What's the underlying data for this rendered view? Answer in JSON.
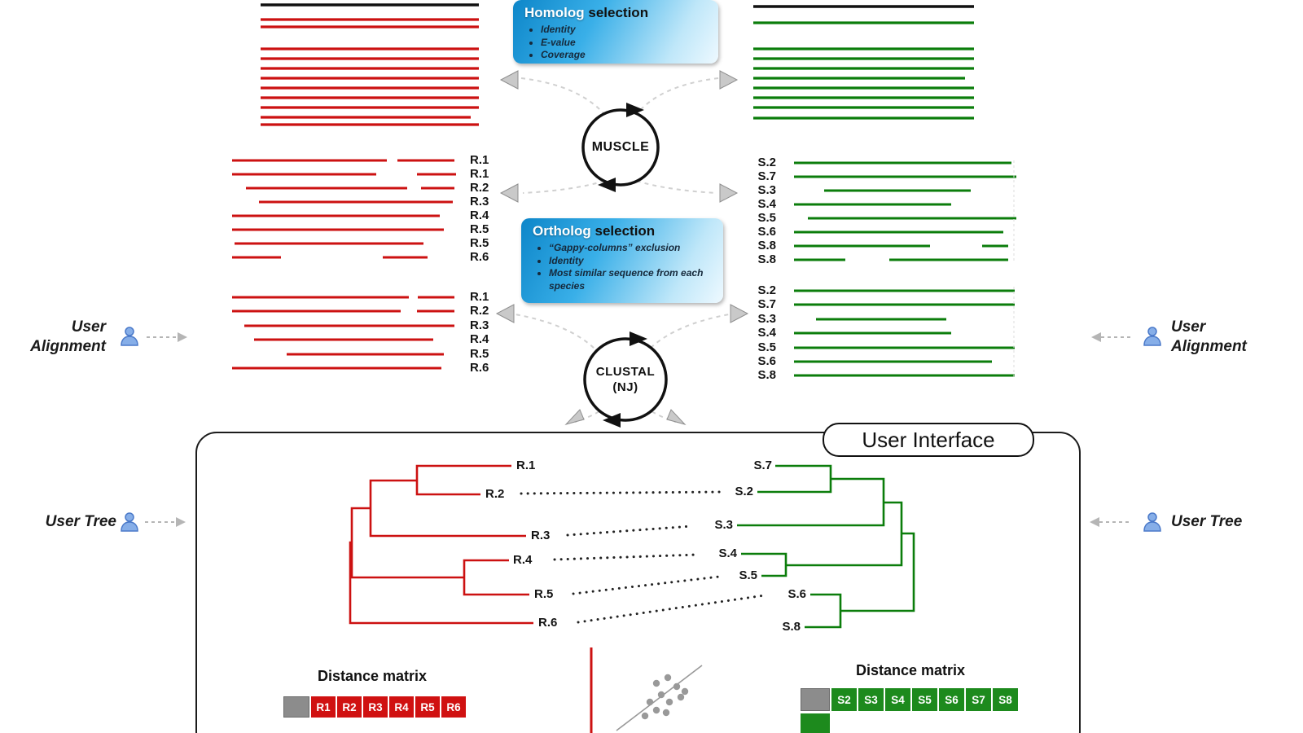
{
  "colors": {
    "red": "#cc1111",
    "green": "#0b7d0b",
    "matrix_red": "#d01111",
    "matrix_green": "#1d8a1d",
    "box_blue": "#0d86c9",
    "gray": "#999999",
    "black": "#111111"
  },
  "boxes": {
    "homolog": {
      "title_highlight": "Homolog",
      "title_rest": " selection",
      "bullets": [
        "Identity",
        "E-value",
        "Coverage"
      ]
    },
    "ortholog": {
      "title_highlight": "Ortholog",
      "title_rest": " selection",
      "bullets": [
        "“Gappy-columns” exclusion",
        "Identity",
        "Most similar sequence from each species"
      ]
    }
  },
  "tools": {
    "muscle": "MUSCLE",
    "clustal_line1": "CLUSTAL",
    "clustal_line2": "(NJ)"
  },
  "side_labels": {
    "user_alignment_left": "User Alignment",
    "user_alignment_right": "User Alignment",
    "user_tree_left": "User Tree",
    "user_tree_right": "User Tree"
  },
  "user_interface": {
    "title": "User Interface"
  },
  "alignments": {
    "left_homologs": [
      "R.1",
      "R.1",
      "R.2",
      "R.3",
      "R.4",
      "R.5",
      "R.5",
      "R.6"
    ],
    "right_homologs": [
      "S.2",
      "S.7",
      "S.3",
      "S.4",
      "S.5",
      "S.6",
      "S.8",
      "S.8"
    ],
    "left_orthologs": [
      "R.1",
      "R.2",
      "R.3",
      "R.4",
      "R.5",
      "R.6"
    ],
    "right_orthologs": [
      "S.2",
      "S.7",
      "S.3",
      "S.4",
      "S.5",
      "S.6",
      "S.8"
    ]
  },
  "trees": {
    "left_leaves": [
      "R.1",
      "R.2",
      "R.3",
      "R.4",
      "R.5",
      "R.6"
    ],
    "right_leaves": [
      "S.7",
      "S.2",
      "S.3",
      "S.4",
      "S.5",
      "S.6",
      "S.8"
    ]
  },
  "matrices": {
    "left": {
      "title": "Distance matrix",
      "headers": [
        "R1",
        "R2",
        "R3",
        "R4",
        "R5",
        "R6"
      ]
    },
    "right": {
      "title": "Distance matrix",
      "headers": [
        "S2",
        "S3",
        "S4",
        "S5",
        "S6",
        "S7",
        "S8"
      ]
    }
  }
}
